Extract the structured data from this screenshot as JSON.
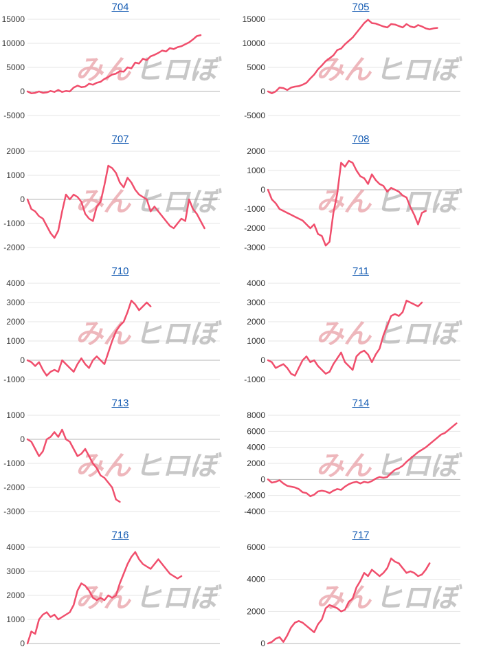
{
  "watermark": {
    "part1": "みん",
    "part2": "ヒロ",
    "part3": "ぼ"
  },
  "line_color": "#f04e6c",
  "chart_data": [
    {
      "type": "line",
      "title": "704",
      "yticks": [
        15000,
        10000,
        5000,
        0,
        -5000
      ],
      "ylim": [
        -5000,
        15000
      ],
      "values": [
        0,
        -400,
        -300,
        0,
        -300,
        -200,
        100,
        -100,
        300,
        -100,
        100,
        0,
        800,
        1200,
        900,
        1000,
        1600,
        1400,
        1800,
        2000,
        2600,
        3000,
        3500,
        3700,
        4200,
        4100,
        5000,
        4800,
        6000,
        5800,
        6800,
        6500,
        7300,
        7600,
        8000,
        8500,
        8300,
        9000,
        8800,
        9200,
        9400,
        9800,
        10200,
        10800,
        11500,
        11700
      ]
    },
    {
      "type": "line",
      "title": "705",
      "yticks": [
        15000,
        10000,
        5000,
        0,
        -5000
      ],
      "ylim": [
        -5000,
        15000
      ],
      "values": [
        0,
        -400,
        0,
        800,
        700,
        300,
        800,
        1000,
        1100,
        1400,
        1800,
        2700,
        3500,
        4600,
        5400,
        6300,
        6900,
        7500,
        8600,
        8900,
        9800,
        10500,
        11200,
        12200,
        13200,
        14200,
        14900,
        14200,
        14100,
        13800,
        13500,
        13300,
        14000,
        13900,
        13600,
        13300,
        14000,
        13500,
        13300,
        13800,
        13500,
        13100,
        12900,
        13100,
        13200
      ]
    },
    {
      "type": "line",
      "title": "707",
      "yticks": [
        2000,
        1000,
        0,
        -1000,
        -2000
      ],
      "ylim": [
        -2000,
        2000
      ],
      "values": [
        0,
        -400,
        -500,
        -700,
        -800,
        -1100,
        -1400,
        -1600,
        -1300,
        -500,
        200,
        0,
        200,
        100,
        -100,
        -600,
        -800,
        -900,
        -300,
        -100,
        600,
        1400,
        1300,
        1100,
        700,
        500,
        900,
        700,
        400,
        200,
        100,
        0,
        -500,
        -300,
        -500,
        -700,
        -900,
        -1100,
        -1200,
        -1000,
        -800,
        -900,
        0,
        -400,
        -600,
        -900,
        -1200
      ]
    },
    {
      "type": "line",
      "title": "708",
      "yticks": [
        2000,
        1000,
        0,
        -1000,
        -2000,
        -3000
      ],
      "ylim": [
        -3000,
        2000
      ],
      "values": [
        0,
        -500,
        -700,
        -1000,
        -1100,
        -1200,
        -1300,
        -1400,
        -1500,
        -1600,
        -1800,
        -2000,
        -1800,
        -2300,
        -2400,
        -2900,
        -2700,
        -1200,
        -200,
        1400,
        1200,
        1500,
        1400,
        1000,
        700,
        600,
        300,
        800,
        500,
        300,
        200,
        -100,
        100,
        0,
        -100,
        -300,
        -400,
        -900,
        -1300,
        -1800,
        -1200,
        -1100
      ]
    },
    {
      "type": "line",
      "title": "710",
      "yticks": [
        4000,
        3000,
        2000,
        1000,
        0,
        -1000
      ],
      "ylim": [
        -1000,
        4000
      ],
      "values": [
        0,
        -100,
        -300,
        -100,
        -500,
        -800,
        -600,
        -500,
        -600,
        0,
        -200,
        -400,
        -600,
        -200,
        100,
        -200,
        -400,
        0,
        200,
        0,
        -200,
        400,
        1000,
        1500,
        1800,
        2000,
        2500,
        3100,
        2900,
        2600,
        2800,
        3000,
        2800
      ]
    },
    {
      "type": "line",
      "title": "711",
      "yticks": [
        4000,
        3000,
        2000,
        1000,
        0,
        -1000
      ],
      "ylim": [
        -1000,
        4000
      ],
      "values": [
        0,
        -100,
        -400,
        -300,
        -200,
        -400,
        -700,
        -800,
        -400,
        0,
        200,
        -100,
        0,
        -300,
        -500,
        -700,
        -600,
        -200,
        100,
        400,
        -100,
        -300,
        -500,
        200,
        400,
        500,
        300,
        -100,
        300,
        600,
        1300,
        1800,
        2300,
        2400,
        2300,
        2500,
        3100,
        3000,
        2900,
        2800,
        3000
      ]
    },
    {
      "type": "line",
      "title": "713",
      "yticks": [
        1000,
        0,
        -1000,
        -2000,
        -3000
      ],
      "ylim": [
        -3000,
        1000
      ],
      "values": [
        0,
        -100,
        -400,
        -700,
        -500,
        0,
        100,
        300,
        100,
        400,
        0,
        -100,
        -400,
        -700,
        -600,
        -400,
        -700,
        -1000,
        -1200,
        -1500,
        -1600,
        -1800,
        -2000,
        -2500,
        -2600
      ]
    },
    {
      "type": "line",
      "title": "714",
      "yticks": [
        8000,
        6000,
        4000,
        2000,
        0,
        -2000,
        -4000
      ],
      "ylim": [
        -4000,
        8000
      ],
      "values": [
        0,
        -400,
        -300,
        -100,
        -500,
        -800,
        -900,
        -1000,
        -1200,
        -1600,
        -1700,
        -2100,
        -1900,
        -1500,
        -1400,
        -1500,
        -1700,
        -1400,
        -1200,
        -1300,
        -900,
        -600,
        -400,
        -300,
        -500,
        -300,
        -400,
        -200,
        100,
        300,
        200,
        300,
        800,
        1200,
        1400,
        1700,
        2200,
        2600,
        3000,
        3400,
        3700,
        4000,
        4400,
        4800,
        5200,
        5600,
        5800,
        6200,
        6600,
        7000
      ]
    },
    {
      "type": "line",
      "title": "716",
      "yticks": [
        4000,
        3000,
        2000,
        1000,
        0
      ],
      "ylim": [
        0,
        4000
      ],
      "values": [
        0,
        500,
        400,
        1000,
        1200,
        1300,
        1100,
        1200,
        1000,
        1100,
        1200,
        1300,
        1600,
        2200,
        2500,
        2400,
        2200,
        1900,
        1800,
        1900,
        1800,
        2000,
        1900,
        2000,
        2500,
        2900,
        3300,
        3600,
        3800,
        3500,
        3300,
        3200,
        3100,
        3300,
        3500,
        3300,
        3100,
        2900,
        2800,
        2700,
        2800
      ]
    },
    {
      "type": "line",
      "title": "717",
      "yticks": [
        6000,
        4000,
        2000,
        0
      ],
      "ylim": [
        0,
        6000
      ],
      "values": [
        0,
        100,
        300,
        400,
        100,
        500,
        1000,
        1300,
        1400,
        1300,
        1100,
        900,
        700,
        1200,
        1500,
        2200,
        2400,
        2300,
        2200,
        2000,
        2100,
        2600,
        2800,
        3500,
        3900,
        4400,
        4200,
        4600,
        4400,
        4200,
        4400,
        4700,
        5300,
        5100,
        5000,
        4700,
        4400,
        4500,
        4400,
        4200,
        4300,
        4600,
        5000
      ]
    }
  ]
}
